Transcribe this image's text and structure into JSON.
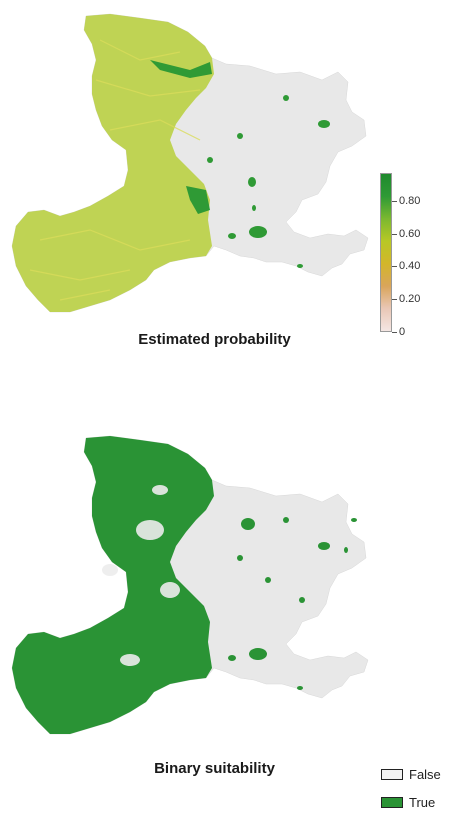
{
  "maps": {
    "probability": {
      "title": "Estimated probability",
      "colorbar": {
        "ticks": [
          {
            "label": "0.80",
            "value": 0.8
          },
          {
            "label": "0.60",
            "value": 0.6
          },
          {
            "label": "0.40",
            "value": 0.4
          },
          {
            "label": "0.20",
            "value": 0.2
          },
          {
            "label": "0",
            "value": 0.0
          }
        ],
        "range": [
          0,
          0.97
        ],
        "colors": [
          "#f4e6e3",
          "#e9c7b6",
          "#d9a55b",
          "#d3b62a",
          "#b8c825",
          "#7cb830",
          "#2f9a35",
          "#1f8a2e"
        ]
      },
      "colors": {
        "background_region": "#eaeaea",
        "high": "#2f9a35",
        "mid": "#a3c733",
        "low": "#d4d84a"
      }
    },
    "binary": {
      "title": "Binary suitability",
      "legend": [
        {
          "label": "False",
          "color": "#f2f2f2"
        },
        {
          "label": "True",
          "color": "#2a9335"
        }
      ],
      "colors": {
        "background_region": "#eaeaea",
        "true": "#2a9335"
      }
    }
  }
}
